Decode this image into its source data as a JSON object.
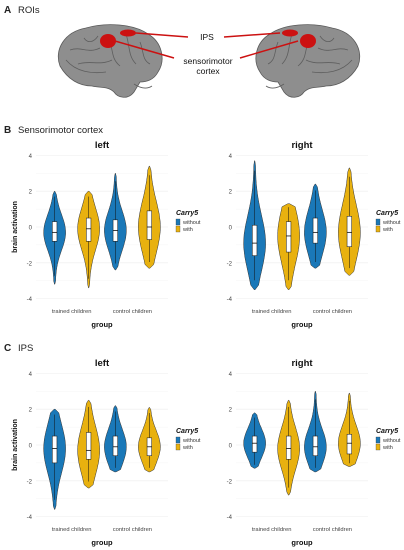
{
  "figure": {
    "panel_a": {
      "letter": "A",
      "title": "ROIs",
      "label_ips": "IPS",
      "label_sm1": "sensorimotor",
      "label_sm2": "cortex"
    },
    "panel_b": {
      "letter": "B",
      "title": "Sensorimotor cortex"
    },
    "panel_c": {
      "letter": "C",
      "title": "IPS"
    },
    "colors": {
      "without": "#1a78b8",
      "with": "#e8b10f",
      "roi": "#cc1111",
      "brain": "#8e8e8e"
    }
  },
  "chart_data": [
    {
      "id": "B-left",
      "type": "violin",
      "title": "left",
      "xlabel": "group",
      "ylabel": "brain activation",
      "categories": [
        "trained children",
        "control children"
      ],
      "yticks": [
        -4,
        -2,
        0,
        2,
        4
      ],
      "ylim": [
        -4.3,
        4.3
      ],
      "legend": {
        "title": "Carry5",
        "entries": [
          "without",
          "with"
        ],
        "position": "right"
      },
      "series": [
        {
          "name": "without",
          "violins": [
            {
              "min": -3.2,
              "q1": -0.8,
              "median": -0.3,
              "q3": 0.3,
              "max": 2.0
            },
            {
              "min": -2.4,
              "q1": -0.8,
              "median": -0.2,
              "q3": 0.4,
              "max": 3.0
            }
          ]
        },
        {
          "name": "with",
          "violins": [
            {
              "min": -3.4,
              "q1": -0.8,
              "median": -0.1,
              "q3": 0.5,
              "max": 2.0
            },
            {
              "min": -2.3,
              "q1": -0.7,
              "median": 0.0,
              "q3": 0.9,
              "max": 3.4
            }
          ]
        }
      ]
    },
    {
      "id": "B-right",
      "type": "violin",
      "title": "right",
      "xlabel": "group",
      "ylabel": "",
      "categories": [
        "trained children",
        "control children"
      ],
      "yticks": [
        -4,
        -2,
        0,
        2,
        4
      ],
      "ylim": [
        -4.3,
        4.3
      ],
      "legend": {
        "title": "Carry5",
        "entries": [
          "without",
          "with"
        ],
        "position": "right"
      },
      "series": [
        {
          "name": "without",
          "violins": [
            {
              "min": -3.5,
              "q1": -1.6,
              "median": -0.9,
              "q3": 0.1,
              "max": 3.7
            },
            {
              "min": -2.3,
              "q1": -0.9,
              "median": -0.3,
              "q3": 0.5,
              "max": 2.4
            }
          ]
        },
        {
          "name": "with",
          "violins": [
            {
              "min": -3.5,
              "q1": -1.4,
              "median": -0.5,
              "q3": 0.3,
              "max": 1.3
            },
            {
              "min": -2.7,
              "q1": -1.1,
              "median": -0.3,
              "q3": 0.6,
              "max": 3.3
            }
          ]
        }
      ]
    },
    {
      "id": "C-left",
      "type": "violin",
      "title": "left",
      "xlabel": "group",
      "ylabel": "brain activation",
      "categories": [
        "trained children",
        "control children"
      ],
      "yticks": [
        -4,
        -2,
        0,
        2,
        4
      ],
      "ylim": [
        -4.3,
        4.3
      ],
      "legend": {
        "title": "Carry5",
        "entries": [
          "without",
          "with"
        ],
        "position": "right"
      },
      "series": [
        {
          "name": "without",
          "violins": [
            {
              "min": -3.6,
              "q1": -1.0,
              "median": -0.2,
              "q3": 0.5,
              "max": 2.0
            },
            {
              "min": -1.5,
              "q1": -0.6,
              "median": -0.1,
              "q3": 0.5,
              "max": 2.2
            }
          ]
        },
        {
          "name": "with",
          "violins": [
            {
              "min": -2.4,
              "q1": -0.8,
              "median": -0.3,
              "q3": 0.7,
              "max": 2.5
            },
            {
              "min": -1.5,
              "q1": -0.6,
              "median": -0.1,
              "q3": 0.4,
              "max": 2.1
            }
          ]
        }
      ]
    },
    {
      "id": "C-right",
      "type": "violin",
      "title": "right",
      "xlabel": "group",
      "ylabel": "",
      "categories": [
        "trained children",
        "control children"
      ],
      "yticks": [
        -4,
        -2,
        0,
        2,
        4
      ],
      "ylim": [
        -4.3,
        4.3
      ],
      "legend": {
        "title": "Carry5",
        "entries": [
          "without",
          "with"
        ],
        "position": "right"
      },
      "series": [
        {
          "name": "without",
          "violins": [
            {
              "min": -1.3,
              "q1": -0.4,
              "median": 0.1,
              "q3": 0.5,
              "max": 1.8
            },
            {
              "min": -1.5,
              "q1": -0.6,
              "median": -0.1,
              "q3": 0.5,
              "max": 3.0
            }
          ]
        },
        {
          "name": "with",
          "violins": [
            {
              "min": -2.8,
              "q1": -0.8,
              "median": -0.2,
              "q3": 0.5,
              "max": 2.5
            },
            {
              "min": -1.2,
              "q1": -0.5,
              "median": 0.1,
              "q3": 0.6,
              "max": 2.9
            }
          ]
        }
      ]
    }
  ]
}
